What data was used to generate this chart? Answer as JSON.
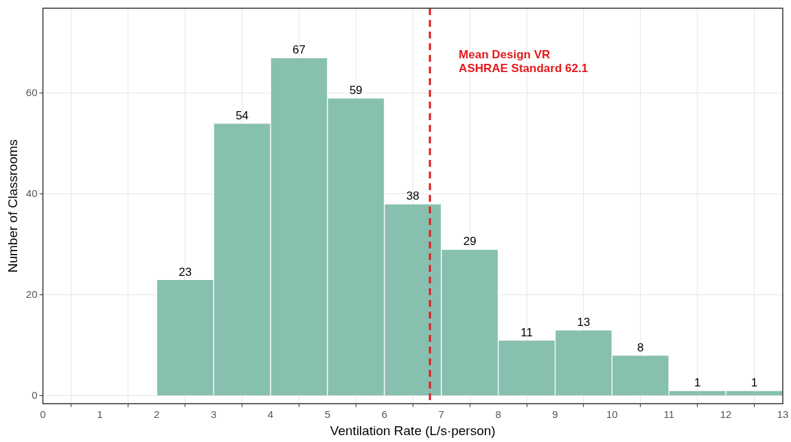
{
  "chart_data": {
    "type": "histogram",
    "xlabel": "Ventilation Rate (L/s·person)",
    "ylabel": "Number of Classrooms",
    "bins": [
      2,
      3,
      4,
      5,
      6,
      7,
      8,
      9,
      10,
      11,
      12,
      13
    ],
    "values": [
      23,
      54,
      67,
      59,
      38,
      29,
      11,
      13,
      8,
      1,
      1
    ],
    "color": "#88c0b0",
    "xlim": [
      0,
      13
    ],
    "xticks": [
      0,
      1,
      2,
      3,
      4,
      5,
      6,
      7,
      8,
      9,
      10,
      11,
      12,
      13
    ],
    "ylim": [
      -1.6,
      76.8
    ],
    "yticks": [
      0,
      20,
      40,
      60
    ],
    "grid": true,
    "data_labels": true,
    "legend": false,
    "ref_lines": [
      {
        "axis": "x",
        "value": 6.8,
        "label": "Mean Design VR\nASHRAE Standard 62.1",
        "color": "#e31a1c",
        "line_style": "dashed"
      }
    ]
  }
}
